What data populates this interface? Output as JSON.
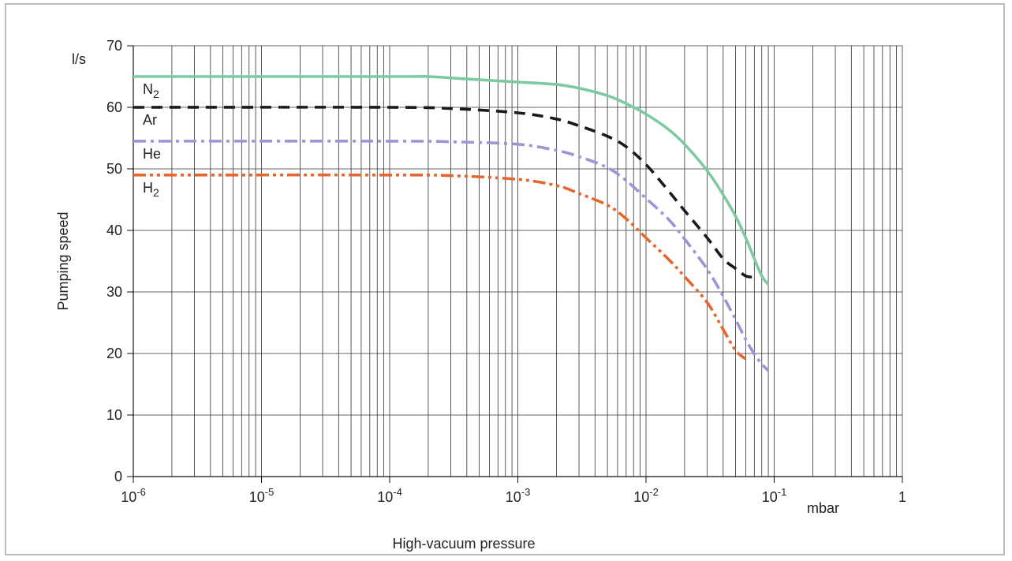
{
  "chart_data": {
    "type": "line",
    "title": "",
    "xlabel": "High-vacuum pressure",
    "ylabel": "Pumping speed",
    "yunit": "l/s",
    "xunit": "mbar",
    "xscale": "log",
    "xlim": [
      1e-06,
      1
    ],
    "ylim": [
      0,
      70
    ],
    "grid": true,
    "legend": "inline labels at left",
    "yticks": [
      "0",
      "10",
      "20",
      "30",
      "40",
      "50",
      "60",
      "70"
    ],
    "xticks": [
      {
        "value": 1e-06,
        "base": "10",
        "exp": "-6"
      },
      {
        "value": 1e-05,
        "base": "10",
        "exp": "-5"
      },
      {
        "value": 0.0001,
        "base": "10",
        "exp": "-4"
      },
      {
        "value": 0.001,
        "base": "10",
        "exp": "-3"
      },
      {
        "value": 0.01,
        "base": "10",
        "exp": "-2"
      },
      {
        "value": 0.1,
        "base": "10",
        "exp": "-1"
      },
      {
        "value": 1,
        "base": "1",
        "exp": ""
      }
    ],
    "series": [
      {
        "name": "N2",
        "label_main": "N",
        "label_sub": "2",
        "color": "#7dcaa0",
        "style": "solid",
        "x": [
          1e-06,
          0.0001,
          0.0002,
          0.0004,
          0.001,
          0.002,
          0.003,
          0.005,
          0.007,
          0.01,
          0.015,
          0.02,
          0.03,
          0.04,
          0.05,
          0.06,
          0.07,
          0.08,
          0.09
        ],
        "y": [
          65,
          65,
          65,
          64.6,
          64.1,
          63.7,
          63.1,
          61.9,
          60.6,
          58.9,
          56.4,
          54,
          49.7,
          45.8,
          42.3,
          38.8,
          35.4,
          32.6,
          31.2
        ]
      },
      {
        "name": "Ar",
        "label_main": "Ar",
        "label_sub": "",
        "color": "#1a1a1a",
        "style": "dash",
        "x": [
          1e-06,
          0.0001,
          0.0003,
          0.001,
          0.002,
          0.003,
          0.005,
          0.007,
          0.01,
          0.015,
          0.02,
          0.03,
          0.04,
          0.05,
          0.06,
          0.07
        ],
        "y": [
          60,
          60,
          59.8,
          59.1,
          58.1,
          57,
          55.3,
          53.6,
          50.7,
          46.4,
          43.2,
          38.8,
          35.4,
          33.8,
          32.6,
          32.4
        ]
      },
      {
        "name": "He",
        "label_main": "He",
        "label_sub": "",
        "color": "#9a95d8",
        "style": "dashdot",
        "x": [
          1e-06,
          0.0001,
          0.0003,
          0.001,
          0.002,
          0.003,
          0.005,
          0.007,
          0.01,
          0.015,
          0.02,
          0.03,
          0.04,
          0.05,
          0.06,
          0.07,
          0.08,
          0.09
        ],
        "y": [
          54.5,
          54.5,
          54.4,
          54,
          53,
          52,
          50.2,
          48.1,
          45.2,
          41.8,
          38.6,
          33.7,
          29.3,
          25.5,
          22.3,
          19.9,
          18.3,
          17.2
        ]
      },
      {
        "name": "H2",
        "label_main": "H",
        "label_sub": "2",
        "color": "#e8662e",
        "style": "dashdotdot",
        "x": [
          1e-06,
          0.0001,
          0.0003,
          0.001,
          0.002,
          0.003,
          0.005,
          0.007,
          0.01,
          0.015,
          0.02,
          0.03,
          0.04,
          0.05,
          0.06
        ],
        "y": [
          49,
          49,
          48.9,
          48.3,
          47.3,
          46,
          44.1,
          41.9,
          38.8,
          35.3,
          32.5,
          28.3,
          23.9,
          20.5,
          19.1
        ]
      }
    ]
  }
}
